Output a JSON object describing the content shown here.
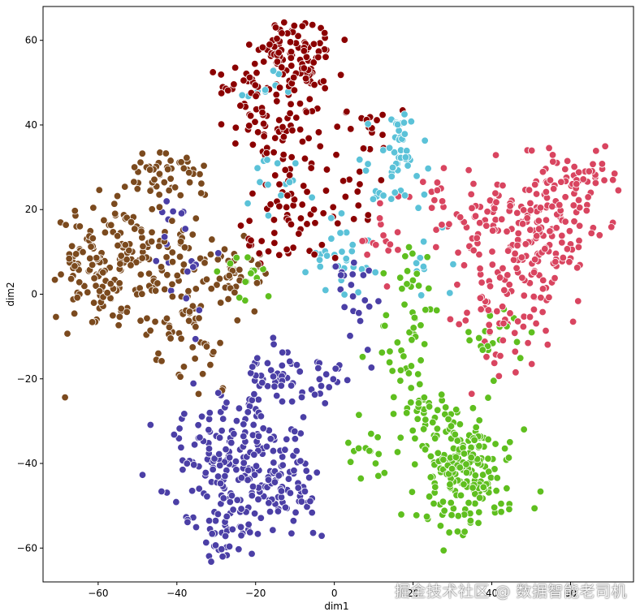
{
  "chart_data": {
    "type": "scatter",
    "xlabel": "dim1",
    "ylabel": "dim2",
    "xlim": [
      -74,
      76
    ],
    "ylim": [
      -68,
      68
    ],
    "xticks": [
      -60,
      -40,
      -20,
      0,
      20,
      40,
      60
    ],
    "yticks": [
      -60,
      -40,
      -20,
      0,
      20,
      40,
      60
    ],
    "grid": false,
    "marker_edge_color": "#ffffff",
    "series": [
      {
        "color": "#8b0000",
        "clusters": [
          {
            "cx": -10,
            "cy": 55,
            "sx": 5,
            "sy": 5,
            "n": 120
          },
          {
            "cx": -22,
            "cy": 48,
            "sx": 5,
            "sy": 3,
            "n": 30
          },
          {
            "cx": -15,
            "cy": 38,
            "sx": 7,
            "sy": 4,
            "n": 40
          },
          {
            "cx": -10,
            "cy": 25,
            "sx": 6,
            "sy": 6,
            "n": 35
          },
          {
            "cx": -2,
            "cy": 20,
            "sx": 6,
            "sy": 5,
            "n": 25
          },
          {
            "cx": 10,
            "cy": 40,
            "sx": 5,
            "sy": 2,
            "n": 15
          },
          {
            "cx": -15,
            "cy": 12,
            "sx": 5,
            "sy": 3,
            "n": 20
          }
        ]
      },
      {
        "color": "#7b4a1e",
        "clusters": [
          {
            "cx": -58,
            "cy": 5,
            "sx": 7,
            "sy": 7,
            "n": 160
          },
          {
            "cx": -42,
            "cy": 28,
            "sx": 6,
            "sy": 3,
            "n": 50
          },
          {
            "cx": -45,
            "cy": 12,
            "sx": 6,
            "sy": 5,
            "n": 40
          },
          {
            "cx": -38,
            "cy": -3,
            "sx": 6,
            "sy": 6,
            "n": 40
          },
          {
            "cx": -25,
            "cy": 4,
            "sx": 4,
            "sy": 4,
            "n": 35
          },
          {
            "cx": -35,
            "cy": -15,
            "sx": 4,
            "sy": 4,
            "n": 20
          }
        ]
      },
      {
        "color": "#4b3fa6",
        "clusters": [
          {
            "cx": -25,
            "cy": -40,
            "sx": 9,
            "sy": 8,
            "n": 200
          },
          {
            "cx": -28,
            "cy": -57,
            "sx": 3,
            "sy": 3,
            "n": 30
          },
          {
            "cx": -12,
            "cy": -48,
            "sx": 5,
            "sy": 5,
            "n": 50
          },
          {
            "cx": -15,
            "cy": -20,
            "sx": 5,
            "sy": 4,
            "n": 40
          },
          {
            "cx": -2,
            "cy": -20,
            "sx": 4,
            "sy": 3,
            "n": 20
          },
          {
            "cx": 5,
            "cy": 0,
            "sx": 4,
            "sy": 5,
            "n": 20
          },
          {
            "cx": -38,
            "cy": 10,
            "sx": 5,
            "sy": 8,
            "n": 20
          }
        ]
      },
      {
        "color": "#5bc2d8",
        "clusters": [
          {
            "cx": 15,
            "cy": 28,
            "sx": 4,
            "sy": 5,
            "n": 40
          },
          {
            "cx": 17,
            "cy": 39,
            "sx": 2,
            "sy": 1.5,
            "n": 15
          },
          {
            "cx": 0,
            "cy": 10,
            "sx": 5,
            "sy": 5,
            "n": 30
          },
          {
            "cx": -12,
            "cy": 28,
            "sx": 5,
            "sy": 5,
            "n": 15
          },
          {
            "cx": -15,
            "cy": 50,
            "sx": 4,
            "sy": 3,
            "n": 10
          },
          {
            "cx": 25,
            "cy": 5,
            "sx": 5,
            "sy": 5,
            "n": 10
          }
        ]
      },
      {
        "color": "#d94560",
        "clusters": [
          {
            "cx": 50,
            "cy": 15,
            "sx": 10,
            "sy": 8,
            "n": 200
          },
          {
            "cx": 62,
            "cy": 27,
            "sx": 5,
            "sy": 3,
            "n": 40
          },
          {
            "cx": 42,
            "cy": -5,
            "sx": 6,
            "sy": 6,
            "n": 50
          },
          {
            "cx": 30,
            "cy": 20,
            "sx": 6,
            "sy": 5,
            "n": 25
          },
          {
            "cx": 12,
            "cy": 12,
            "sx": 4,
            "sy": 3,
            "n": 15
          }
        ]
      },
      {
        "color": "#5fbf1f",
        "clusters": [
          {
            "cx": 33,
            "cy": -42,
            "sx": 6,
            "sy": 7,
            "n": 200
          },
          {
            "cx": 22,
            "cy": -28,
            "sx": 4,
            "sy": 3,
            "n": 30
          },
          {
            "cx": 18,
            "cy": -15,
            "sx": 5,
            "sy": 6,
            "n": 30
          },
          {
            "cx": 18,
            "cy": 2,
            "sx": 3,
            "sy": 5,
            "n": 20
          },
          {
            "cx": -22,
            "cy": 4,
            "sx": 4,
            "sy": 3,
            "n": 15
          },
          {
            "cx": 10,
            "cy": -38,
            "sx": 5,
            "sy": 3,
            "n": 15
          },
          {
            "cx": 40,
            "cy": -10,
            "sx": 4,
            "sy": 5,
            "n": 20
          }
        ]
      }
    ]
  },
  "watermark": "掘金技术社区 @ 数据智能老司机"
}
